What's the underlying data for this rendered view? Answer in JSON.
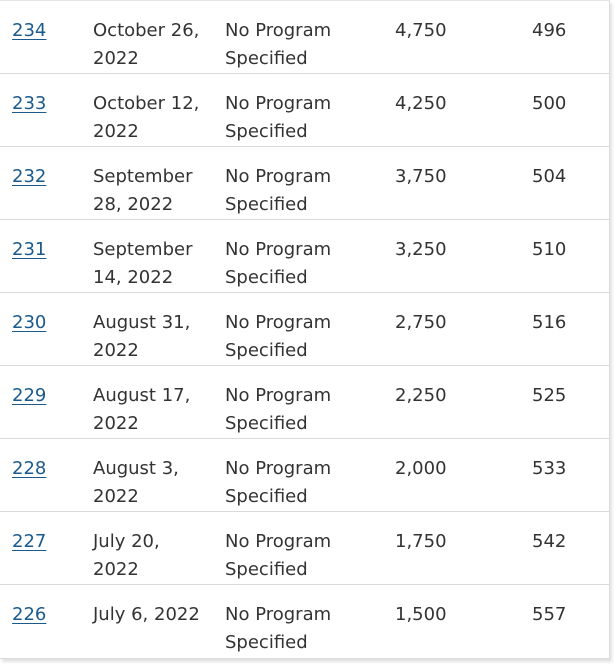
{
  "rows": [
    {
      "draw": "234",
      "date": "October 26, 2022",
      "program": "No Program Specified",
      "itas": "4,750",
      "crs": "496"
    },
    {
      "draw": "233",
      "date": "October 12, 2022",
      "program": "No Program Specified",
      "itas": "4,250",
      "crs": "500"
    },
    {
      "draw": "232",
      "date": "September 28, 2022",
      "program": "No Program Specified",
      "itas": "3,750",
      "crs": "504"
    },
    {
      "draw": "231",
      "date": "September 14, 2022",
      "program": "No Program Specified",
      "itas": "3,250",
      "crs": "510"
    },
    {
      "draw": "230",
      "date": "August 31, 2022",
      "program": "No Program Specified",
      "itas": "2,750",
      "crs": "516"
    },
    {
      "draw": "229",
      "date": "August 17, 2022",
      "program": "No Program Specified",
      "itas": "2,250",
      "crs": "525"
    },
    {
      "draw": "228",
      "date": "August 3, 2022",
      "program": "No Program Specified",
      "itas": "2,000",
      "crs": "533"
    },
    {
      "draw": "227",
      "date": "July 20, 2022",
      "program": "No Program Specified",
      "itas": "1,750",
      "crs": "542"
    },
    {
      "draw": "226",
      "date": "July 6, 2022",
      "program": "No Program Specified",
      "itas": "1,500",
      "crs": "557"
    }
  ],
  "colors": {
    "link": "#1a5a8c",
    "text": "#333333",
    "row_border": "#d9d9d9"
  }
}
